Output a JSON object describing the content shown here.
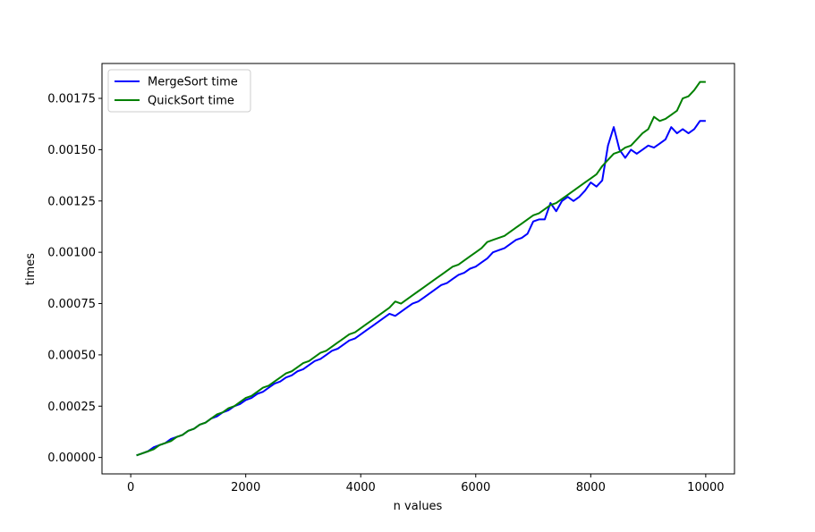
{
  "chart_data": {
    "type": "line",
    "title": "",
    "xlabel": "n values",
    "ylabel": "times",
    "xlim": [
      -500,
      10500
    ],
    "ylim": [
      -8e-05,
      0.00192
    ],
    "xticks": [
      0,
      2000,
      4000,
      6000,
      8000,
      10000
    ],
    "yticks": [
      0.0,
      0.00025,
      0.0005,
      0.00075,
      0.001,
      0.00125,
      0.0015,
      0.00175
    ],
    "ytick_labels": [
      "0.00000",
      "0.00025",
      "0.00050",
      "0.00075",
      "0.00100",
      "0.00125",
      "0.00150",
      "0.00175"
    ],
    "grid": false,
    "legend_position": "top-left",
    "x": [
      100,
      200,
      300,
      400,
      500,
      600,
      700,
      800,
      900,
      1000,
      1100,
      1200,
      1300,
      1400,
      1500,
      1600,
      1700,
      1800,
      1900,
      2000,
      2100,
      2200,
      2300,
      2400,
      2500,
      2600,
      2700,
      2800,
      2900,
      3000,
      3100,
      3200,
      3300,
      3400,
      3500,
      3600,
      3700,
      3800,
      3900,
      4000,
      4100,
      4200,
      4300,
      4400,
      4500,
      4600,
      4700,
      4800,
      4900,
      5000,
      5100,
      5200,
      5300,
      5400,
      5500,
      5600,
      5700,
      5800,
      5900,
      6000,
      6100,
      6200,
      6300,
      6400,
      6500,
      6600,
      6700,
      6800,
      6900,
      7000,
      7100,
      7200,
      7300,
      7400,
      7500,
      7600,
      7700,
      7800,
      7900,
      8000,
      8100,
      8200,
      8300,
      8400,
      8500,
      8600,
      8700,
      8800,
      8900,
      9000,
      9100,
      9200,
      9300,
      9400,
      9500,
      9600,
      9700,
      9800,
      9900,
      10000
    ],
    "series": [
      {
        "name": "MergeSort time",
        "color": "#0000ff",
        "values": [
          1e-05,
          2e-05,
          3e-05,
          5e-05,
          6e-05,
          7e-05,
          9e-05,
          0.0001,
          0.00011,
          0.00013,
          0.00014,
          0.00016,
          0.00017,
          0.00019,
          0.0002,
          0.00022,
          0.00023,
          0.00025,
          0.00026,
          0.00028,
          0.00029,
          0.00031,
          0.00032,
          0.00034,
          0.00036,
          0.00037,
          0.00039,
          0.0004,
          0.00042,
          0.00043,
          0.00045,
          0.00047,
          0.00048,
          0.0005,
          0.00052,
          0.00053,
          0.00055,
          0.00057,
          0.00058,
          0.0006,
          0.00062,
          0.00064,
          0.00066,
          0.00068,
          0.0007,
          0.00069,
          0.00071,
          0.00073,
          0.00075,
          0.00076,
          0.00078,
          0.0008,
          0.00082,
          0.00084,
          0.00085,
          0.00087,
          0.00089,
          0.0009,
          0.00092,
          0.00093,
          0.00095,
          0.00097,
          0.001,
          0.00101,
          0.00102,
          0.00104,
          0.00106,
          0.00107,
          0.00109,
          0.00115,
          0.00116,
          0.00116,
          0.00124,
          0.0012,
          0.00125,
          0.00127,
          0.00125,
          0.00127,
          0.0013,
          0.00134,
          0.00132,
          0.00135,
          0.00152,
          0.00161,
          0.0015,
          0.00146,
          0.0015,
          0.00148,
          0.0015,
          0.00152,
          0.00151,
          0.00153,
          0.00155,
          0.00161,
          0.00158,
          0.0016,
          0.00158,
          0.0016,
          0.00164,
          0.00164
        ]
      },
      {
        "name": "QuickSort time",
        "color": "#008000",
        "values": [
          1e-05,
          2e-05,
          3e-05,
          4e-05,
          6e-05,
          7e-05,
          8e-05,
          0.0001,
          0.00011,
          0.00013,
          0.00014,
          0.00016,
          0.00017,
          0.00019,
          0.00021,
          0.00022,
          0.00024,
          0.00025,
          0.00027,
          0.00029,
          0.0003,
          0.00032,
          0.00034,
          0.00035,
          0.00037,
          0.00039,
          0.00041,
          0.00042,
          0.00044,
          0.00046,
          0.00047,
          0.00049,
          0.00051,
          0.00052,
          0.00054,
          0.00056,
          0.00058,
          0.0006,
          0.00061,
          0.00063,
          0.00065,
          0.00067,
          0.00069,
          0.00071,
          0.00073,
          0.00076,
          0.00075,
          0.00077,
          0.00079,
          0.00081,
          0.00083,
          0.00085,
          0.00087,
          0.00089,
          0.00091,
          0.00093,
          0.00094,
          0.00096,
          0.00098,
          0.001,
          0.00102,
          0.00105,
          0.00106,
          0.00107,
          0.00108,
          0.0011,
          0.00112,
          0.00114,
          0.00116,
          0.00118,
          0.00119,
          0.00121,
          0.00123,
          0.00124,
          0.00126,
          0.00128,
          0.0013,
          0.00132,
          0.00134,
          0.00136,
          0.00138,
          0.00142,
          0.00145,
          0.00148,
          0.00149,
          0.00151,
          0.00152,
          0.00155,
          0.00158,
          0.0016,
          0.00166,
          0.00164,
          0.00165,
          0.00167,
          0.00169,
          0.00175,
          0.00176,
          0.00179,
          0.00183,
          0.00183
        ]
      }
    ]
  }
}
